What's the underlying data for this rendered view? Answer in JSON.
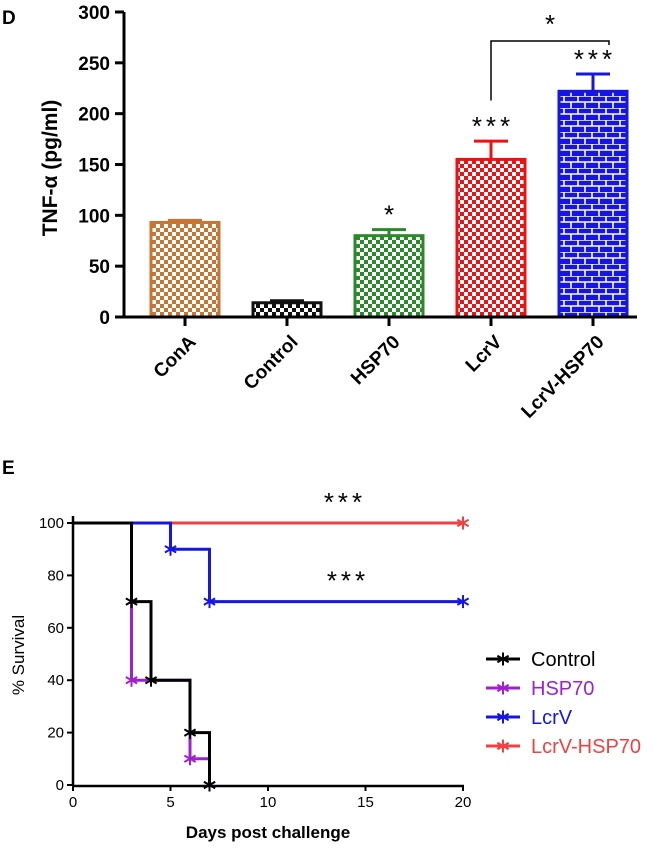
{
  "chart_data": [
    {
      "panel": "D",
      "type": "bar",
      "ylabel": "TNF-α (pg/ml)",
      "ylim": [
        0,
        300
      ],
      "yticks": [
        "0",
        "50",
        "100",
        "150",
        "200",
        "250",
        "300"
      ],
      "categories": [
        "ConA",
        "Control",
        "HSP70",
        "LcrV",
        "LcrV-HSP70"
      ],
      "values": [
        93,
        14,
        80,
        155,
        222
      ],
      "errors": [
        2,
        2,
        6,
        18,
        17
      ],
      "colors": [
        "#c87533",
        "#111111",
        "#2a8a2a",
        "#ee1111",
        "#1515e6"
      ],
      "significance": [
        "",
        "",
        "*",
        "***",
        "***"
      ],
      "comparison": {
        "between": [
          "LcrV",
          "LcrV-HSP70"
        ],
        "label": "*"
      }
    },
    {
      "panel": "E",
      "type": "line",
      "xlabel": "Days post challenge",
      "ylabel": "% Survival",
      "xlim": [
        0,
        20
      ],
      "ylim": [
        0,
        100
      ],
      "xticks": [
        "0",
        "5",
        "10",
        "15",
        "20"
      ],
      "yticks": [
        "0",
        "20",
        "40",
        "60",
        "80",
        "100"
      ],
      "series": [
        {
          "name": "Control",
          "color": "#000000",
          "steps": [
            [
              0,
              100
            ],
            [
              3,
              100
            ],
            [
              3,
              70
            ],
            [
              4,
              70
            ],
            [
              4,
              40
            ],
            [
              6,
              40
            ],
            [
              6,
              20
            ],
            [
              7,
              20
            ],
            [
              7,
              0
            ]
          ],
          "markers": [
            [
              3,
              70
            ],
            [
              4,
              40
            ],
            [
              6,
              20
            ],
            [
              7,
              0
            ]
          ]
        },
        {
          "name": "HSP70",
          "color": "#a020d0",
          "steps": [
            [
              0,
              100
            ],
            [
              3,
              100
            ],
            [
              3,
              40
            ],
            [
              6,
              40
            ],
            [
              6,
              10
            ],
            [
              7,
              10
            ],
            [
              7,
              0
            ]
          ],
          "markers": [
            [
              3,
              40
            ],
            [
              6,
              10
            ],
            [
              7,
              0
            ]
          ]
        },
        {
          "name": "LcrV",
          "color": "#1515e6",
          "steps": [
            [
              0,
              100
            ],
            [
              5,
              100
            ],
            [
              5,
              90
            ],
            [
              7,
              90
            ],
            [
              7,
              70
            ],
            [
              20,
              70
            ]
          ],
          "markers": [
            [
              5,
              90
            ],
            [
              7,
              70
            ],
            [
              20,
              70
            ]
          ]
        },
        {
          "name": "LcrV-HSP70",
          "color": "#f04040",
          "steps": [
            [
              0,
              100
            ],
            [
              20,
              100
            ]
          ],
          "markers": [
            [
              20,
              100
            ]
          ]
        }
      ],
      "annotations": [
        "***",
        "***"
      ]
    }
  ]
}
